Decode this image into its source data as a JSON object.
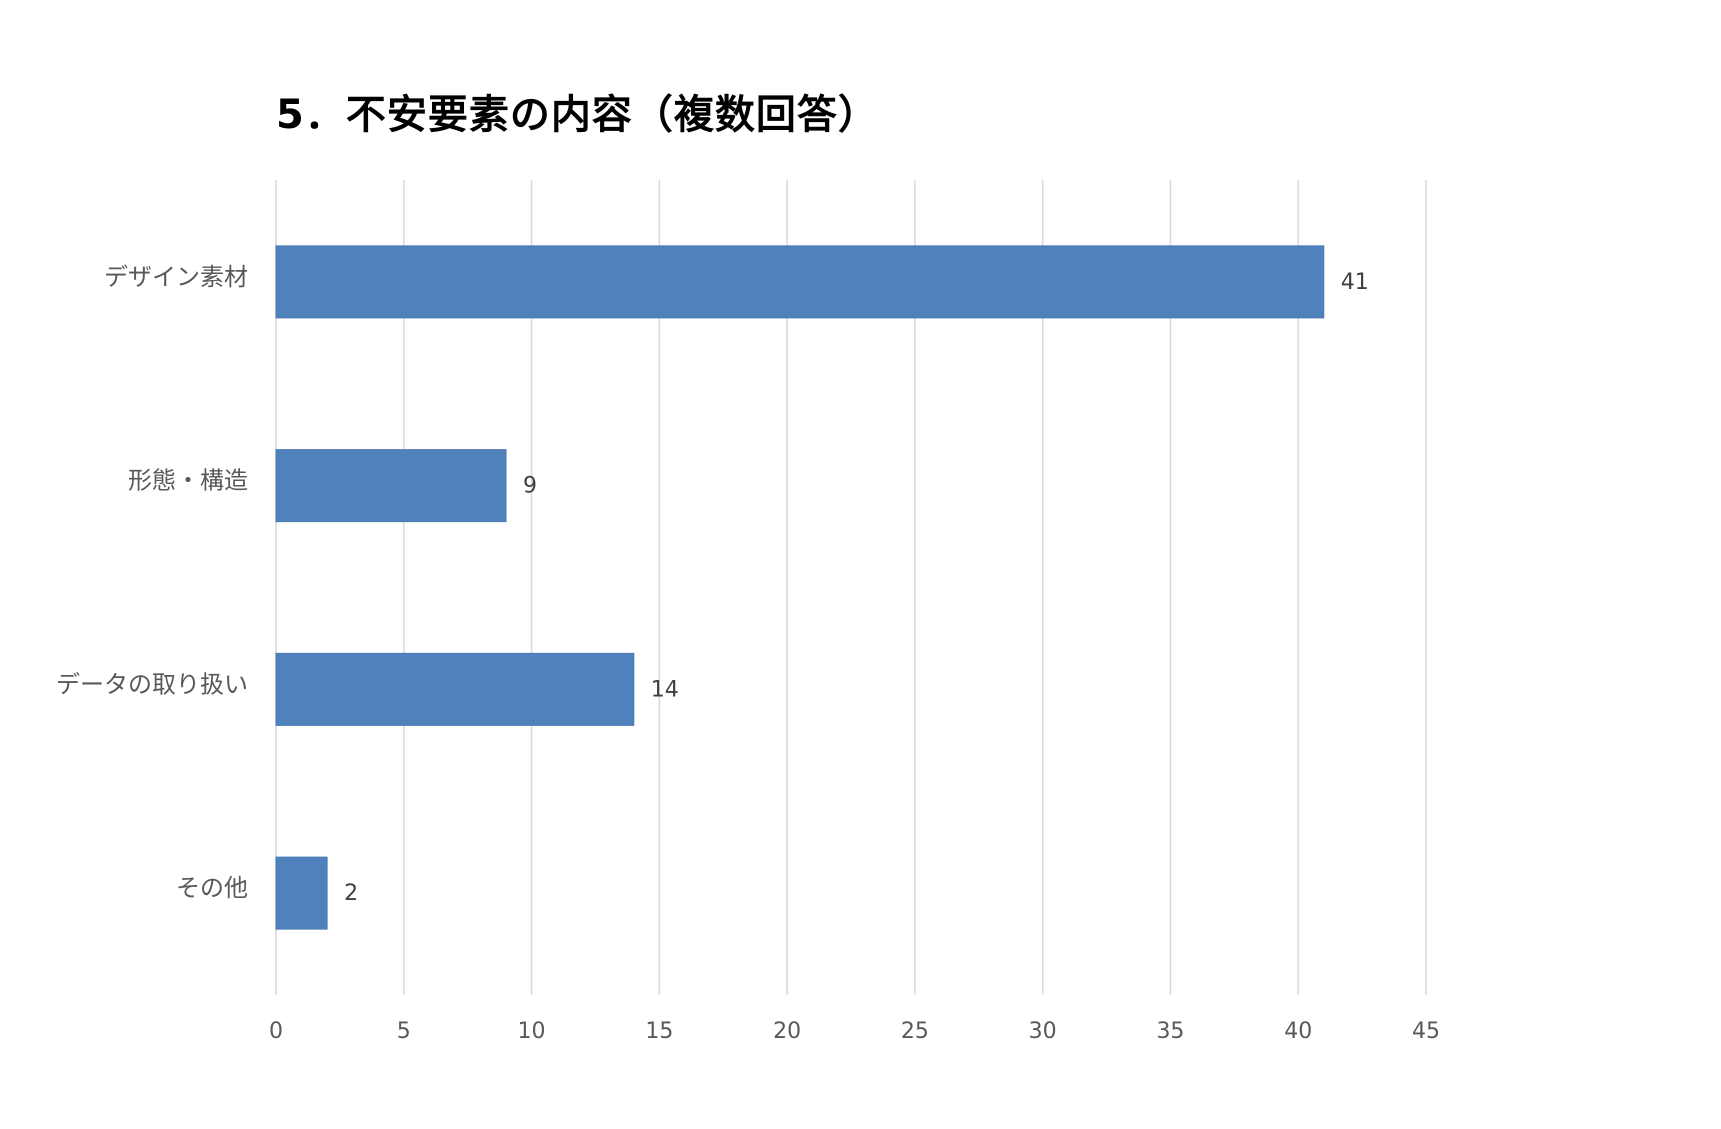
{
  "chart_data": {
    "type": "bar",
    "orientation": "horizontal",
    "title": "5．不安要素の内容（複数回答）",
    "categories": [
      "デザイン素材",
      "形態・構造",
      "データの取り扱い",
      "その他"
    ],
    "values": [
      41,
      9,
      14,
      2
    ],
    "xlim": [
      0,
      45
    ],
    "xticks": [
      "0",
      "5",
      "10",
      "15",
      "20",
      "25",
      "30",
      "35",
      "40",
      "45"
    ],
    "xlabel": "",
    "ylabel": "",
    "grid": "vertical",
    "data_labels": true,
    "bar_color": "#4f81bd",
    "legend": "none"
  }
}
